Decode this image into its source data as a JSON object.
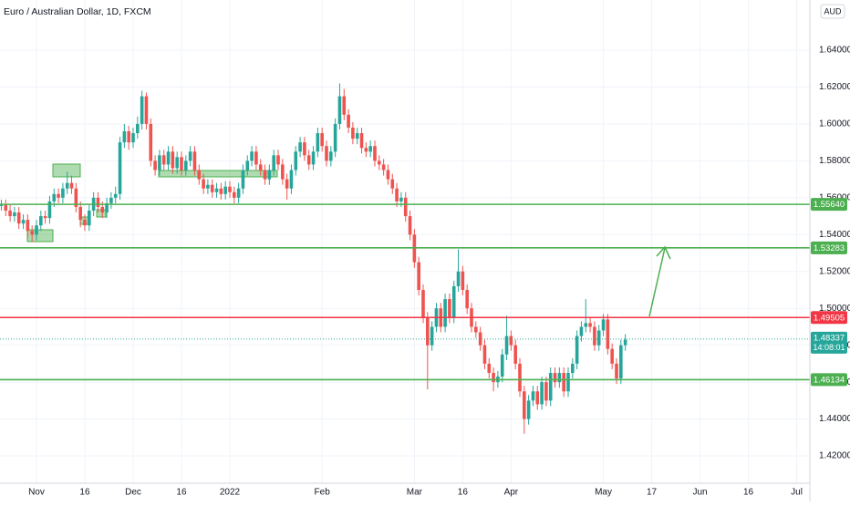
{
  "chart_data": {
    "type": "candlestick",
    "title": "Euro / Australian Dollar, 1D, FXCM",
    "currency": "AUD",
    "xlim": [
      -0.3,
      184
    ],
    "ylim": [
      1.4052,
      1.6672
    ],
    "yticks": [
      {
        "value": 1.42,
        "label": "1.42000"
      },
      {
        "value": 1.44,
        "label": "1.44000"
      },
      {
        "value": 1.46,
        "label": "1.46000"
      },
      {
        "value": 1.48,
        "label": "1.48000"
      },
      {
        "value": 1.5,
        "label": "1.50000"
      },
      {
        "value": 1.52,
        "label": "1.52000"
      },
      {
        "value": 1.54,
        "label": "1.54000"
      },
      {
        "value": 1.56,
        "label": "1.56000"
      },
      {
        "value": 1.58,
        "label": "1.58000"
      },
      {
        "value": 1.6,
        "label": "1.60000"
      },
      {
        "value": 1.62,
        "label": "1.62000"
      },
      {
        "value": 1.64,
        "label": "1.64000"
      }
    ],
    "xticks": [
      {
        "value": 8,
        "label": "Nov"
      },
      {
        "value": 19,
        "label": "16"
      },
      {
        "value": 30,
        "label": "Dec"
      },
      {
        "value": 41,
        "label": "16"
      },
      {
        "value": 52,
        "label": "2022"
      },
      {
        "value": 73,
        "label": "Feb"
      },
      {
        "value": 94,
        "label": "Mar"
      },
      {
        "value": 105,
        "label": "16"
      },
      {
        "value": 116,
        "label": "Apr"
      },
      {
        "value": 137,
        "label": "May"
      },
      {
        "value": 148,
        "label": "17"
      },
      {
        "value": 159,
        "label": "Jun"
      },
      {
        "value": 170,
        "label": "16"
      },
      {
        "value": 181,
        "label": "Jul"
      }
    ],
    "up_color": "#26a69a",
    "down_color": "#ef5350",
    "grid": true,
    "close": [
      1.556,
      1.553,
      1.55,
      1.552,
      1.546,
      1.548,
      1.542,
      1.54,
      1.545,
      1.55,
      1.549,
      1.558,
      1.562,
      1.56,
      1.565,
      1.568,
      1.565,
      1.555,
      1.548,
      1.545,
      1.553,
      1.56,
      1.555,
      1.552,
      1.557,
      1.56,
      1.562,
      1.59,
      1.596,
      1.59,
      1.595,
      1.6,
      1.615,
      1.6,
      1.58,
      1.575,
      1.583,
      1.578,
      1.585,
      1.576,
      1.582,
      1.575,
      1.58,
      1.585,
      1.575,
      1.57,
      1.565,
      1.567,
      1.563,
      1.565,
      1.562,
      1.566,
      1.563,
      1.56,
      1.565,
      1.575,
      1.58,
      1.585,
      1.578,
      1.575,
      1.57,
      1.575,
      1.583,
      1.578,
      1.57,
      1.565,
      1.575,
      1.585,
      1.59,
      1.583,
      1.578,
      1.585,
      1.595,
      1.588,
      1.58,
      1.585,
      1.6,
      1.615,
      1.605,
      1.598,
      1.592,
      1.595,
      1.587,
      1.585,
      1.588,
      1.58,
      1.578,
      1.575,
      1.57,
      1.565,
      1.558,
      1.56,
      1.55,
      1.54,
      1.525,
      1.51,
      1.495,
      1.48,
      1.49,
      1.5,
      1.49,
      1.505,
      1.495,
      1.512,
      1.52,
      1.51,
      1.5,
      1.49,
      1.487,
      1.48,
      1.47,
      1.465,
      1.46,
      1.463,
      1.475,
      1.485,
      1.48,
      1.47,
      1.455,
      1.44,
      1.45,
      1.455,
      1.448,
      1.46,
      1.45,
      1.465,
      1.46,
      1.465,
      1.455,
      1.465,
      1.47,
      1.485,
      1.49,
      1.492,
      1.49,
      1.48,
      1.488,
      1.494,
      1.478,
      1.47,
      1.462,
      1.48,
      1.483
    ],
    "high": [
      1.559,
      1.559,
      1.556,
      1.555,
      1.555,
      1.551,
      1.551,
      1.545,
      1.548,
      1.553,
      1.553,
      1.561,
      1.565,
      1.565,
      1.568,
      1.574,
      1.572,
      1.568,
      1.558,
      1.551,
      1.556,
      1.563,
      1.563,
      1.558,
      1.56,
      1.563,
      1.566,
      1.593,
      1.6,
      1.599,
      1.598,
      1.604,
      1.618,
      1.617,
      1.603,
      1.583,
      1.586,
      1.586,
      1.588,
      1.588,
      1.585,
      1.585,
      1.583,
      1.588,
      1.588,
      1.578,
      1.573,
      1.57,
      1.57,
      1.568,
      1.568,
      1.569,
      1.569,
      1.566,
      1.568,
      1.578,
      1.583,
      1.588,
      1.588,
      1.581,
      1.578,
      1.578,
      1.586,
      1.586,
      1.581,
      1.573,
      1.578,
      1.588,
      1.593,
      1.593,
      1.586,
      1.588,
      1.598,
      1.598,
      1.591,
      1.588,
      1.603,
      1.622,
      1.619,
      1.608,
      1.601,
      1.598,
      1.598,
      1.59,
      1.591,
      1.591,
      1.583,
      1.581,
      1.578,
      1.573,
      1.568,
      1.563,
      1.563,
      1.553,
      1.543,
      1.528,
      1.513,
      1.498,
      1.493,
      1.503,
      1.503,
      1.508,
      1.508,
      1.515,
      1.532,
      1.523,
      1.513,
      1.503,
      1.493,
      1.49,
      1.483,
      1.473,
      1.468,
      1.466,
      1.478,
      1.496,
      1.488,
      1.483,
      1.473,
      1.458,
      1.453,
      1.458,
      1.458,
      1.463,
      1.463,
      1.468,
      1.468,
      1.468,
      1.468,
      1.468,
      1.473,
      1.488,
      1.493,
      1.505,
      1.495,
      1.493,
      1.491,
      1.497,
      1.497,
      1.481,
      1.473,
      1.483,
      1.486
    ],
    "low": [
      1.553,
      1.55,
      1.547,
      1.547,
      1.543,
      1.543,
      1.538,
      1.536,
      1.537,
      1.542,
      1.546,
      1.546,
      1.555,
      1.557,
      1.557,
      1.562,
      1.562,
      1.552,
      1.544,
      1.542,
      1.542,
      1.55,
      1.552,
      1.549,
      1.549,
      1.554,
      1.557,
      1.559,
      1.587,
      1.586,
      1.587,
      1.592,
      1.597,
      1.597,
      1.577,
      1.572,
      1.572,
      1.575,
      1.575,
      1.573,
      1.573,
      1.572,
      1.572,
      1.577,
      1.572,
      1.567,
      1.562,
      1.562,
      1.56,
      1.56,
      1.559,
      1.559,
      1.56,
      1.557,
      1.557,
      1.562,
      1.572,
      1.577,
      1.575,
      1.572,
      1.567,
      1.567,
      1.572,
      1.575,
      1.567,
      1.559,
      1.562,
      1.572,
      1.582,
      1.58,
      1.575,
      1.575,
      1.582,
      1.585,
      1.577,
      1.577,
      1.582,
      1.597,
      1.602,
      1.595,
      1.589,
      1.589,
      1.584,
      1.582,
      1.582,
      1.577,
      1.575,
      1.572,
      1.567,
      1.562,
      1.555,
      1.555,
      1.547,
      1.537,
      1.522,
      1.507,
      1.492,
      1.456,
      1.477,
      1.487,
      1.487,
      1.487,
      1.492,
      1.492,
      1.509,
      1.507,
      1.497,
      1.487,
      1.484,
      1.477,
      1.467,
      1.462,
      1.455,
      1.457,
      1.46,
      1.472,
      1.477,
      1.467,
      1.452,
      1.432,
      1.437,
      1.447,
      1.445,
      1.445,
      1.447,
      1.447,
      1.457,
      1.457,
      1.452,
      1.452,
      1.462,
      1.467,
      1.482,
      1.487,
      1.487,
      1.477,
      1.477,
      1.485,
      1.475,
      1.467,
      1.459,
      1.459,
      1.477
    ],
    "levels": [
      {
        "value": 1.5564,
        "label": "1.55640",
        "color": "#4caf50"
      },
      {
        "value": 1.53283,
        "label": "1.53283",
        "color": "#4caf50"
      },
      {
        "value": 1.49505,
        "label": "1.49505",
        "color": "#f23645"
      },
      {
        "value": 1.46134,
        "label": "1.46134",
        "color": "#4caf50"
      }
    ],
    "current": {
      "value": 1.48337,
      "label": "1.48337",
      "countdown": "14:08:01",
      "color": "#26a69a"
    }
  }
}
